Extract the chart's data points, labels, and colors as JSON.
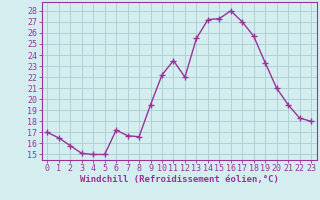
{
  "x": [
    0,
    1,
    2,
    3,
    4,
    5,
    6,
    7,
    8,
    9,
    10,
    11,
    12,
    13,
    14,
    15,
    16,
    17,
    18,
    19,
    20,
    21,
    22,
    23
  ],
  "y": [
    17.0,
    16.5,
    15.8,
    15.1,
    15.0,
    15.0,
    17.2,
    16.7,
    16.6,
    19.5,
    22.2,
    23.5,
    22.0,
    25.5,
    27.2,
    27.3,
    28.0,
    27.0,
    25.7,
    23.3,
    21.0,
    19.5,
    18.3,
    18.0
  ],
  "line_color": "#993399",
  "marker": "+",
  "marker_size": 4,
  "marker_color": "#993399",
  "bg_color": "#d4eef0",
  "grid_color": "#aaccd0",
  "xlabel": "Windchill (Refroidissement éolien,°C)",
  "ylabel_ticks": [
    15,
    16,
    17,
    18,
    19,
    20,
    21,
    22,
    23,
    24,
    25,
    26,
    27,
    28
  ],
  "xlim": [
    -0.5,
    23.5
  ],
  "ylim": [
    14.5,
    28.8
  ],
  "axis_color": "#993399",
  "tick_color": "#993399",
  "xlabel_fontsize": 6.5,
  "tick_fontsize": 6.0,
  "linewidth": 1.0
}
